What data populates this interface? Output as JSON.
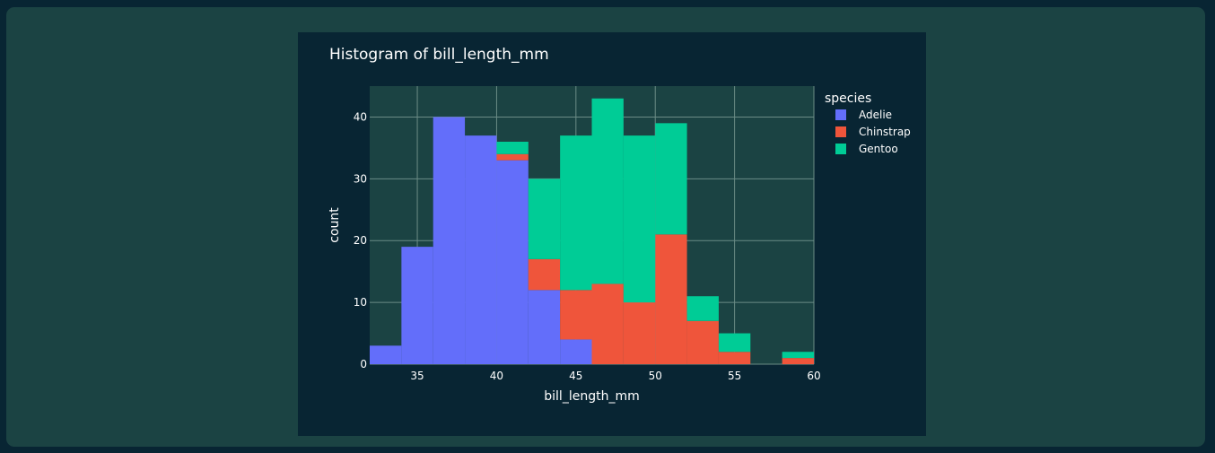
{
  "colors": {
    "page_bg": "#082533",
    "panel_bg": "#1b4343",
    "plot_bg": "#1b4343",
    "grid": "#6b8c86",
    "text": "#ffffff"
  },
  "chart_data": {
    "type": "bar",
    "barmode": "stack",
    "title": "Histogram of bill_length_mm",
    "xlabel": "bill_length_mm",
    "ylabel": "count",
    "xlim": [
      32,
      60
    ],
    "ylim": [
      0,
      45
    ],
    "xticks": [
      35,
      40,
      45,
      50,
      55,
      60
    ],
    "yticks": [
      0,
      10,
      20,
      30,
      40
    ],
    "grid": true,
    "bin_edges": [
      32,
      34,
      36,
      38,
      40,
      42,
      44,
      46,
      48,
      50,
      52,
      54,
      56,
      58,
      60
    ],
    "legend": {
      "title": "species",
      "placement": "right"
    },
    "series": [
      {
        "name": "Adelie",
        "color": "#636efa",
        "values": [
          3,
          19,
          40,
          37,
          33,
          12,
          4,
          0,
          0,
          0,
          0,
          0,
          0,
          0
        ]
      },
      {
        "name": "Chinstrap",
        "color": "#ef553b",
        "values": [
          0,
          0,
          0,
          0,
          1,
          5,
          8,
          13,
          10,
          21,
          7,
          2,
          0,
          1
        ]
      },
      {
        "name": "Gentoo",
        "color": "#00cc96",
        "values": [
          0,
          0,
          0,
          0,
          2,
          13,
          25,
          30,
          27,
          18,
          4,
          3,
          0,
          1
        ]
      }
    ]
  }
}
